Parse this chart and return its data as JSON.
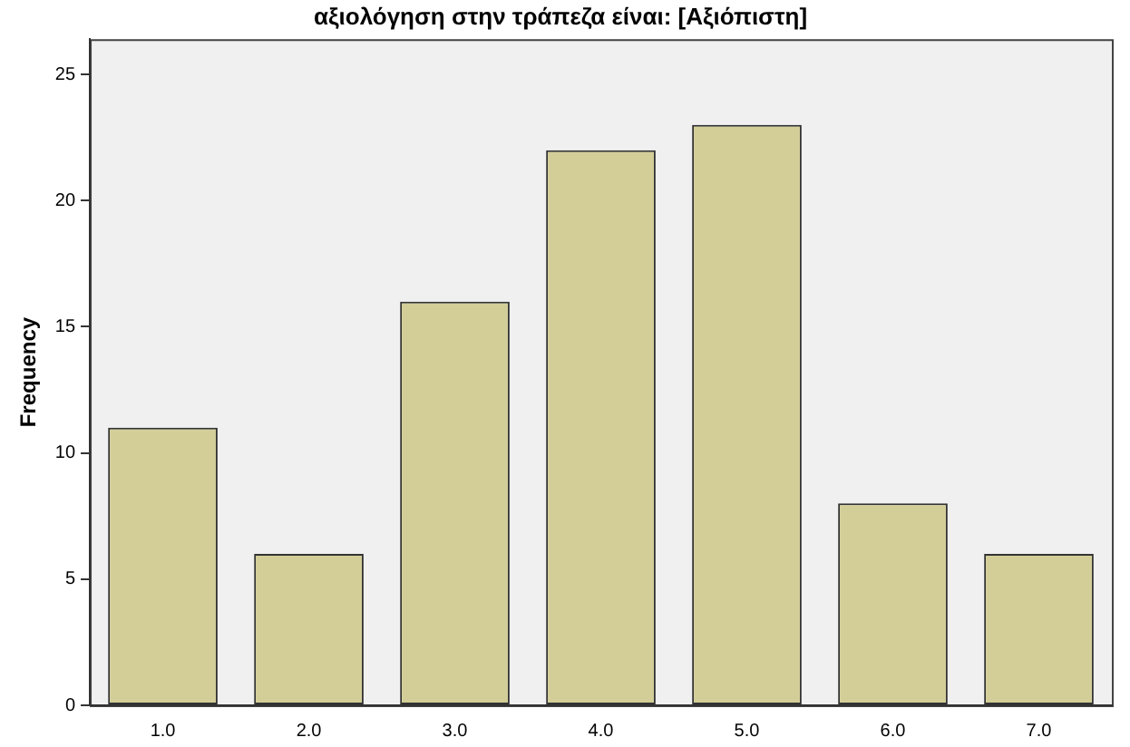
{
  "chart_data": {
    "type": "bar",
    "title": "αξιολόγηση στην τράπεζα είναι: [Αξιόπιστη]",
    "ylabel": "Frequency",
    "categories": [
      "1.0",
      "2.0",
      "3.0",
      "4.0",
      "5.0",
      "6.0",
      "7.0"
    ],
    "values": [
      11,
      6,
      16,
      22,
      23,
      8,
      6
    ],
    "color": "#d3ce97",
    "ylim": [
      0,
      26.4
    ],
    "yticks": [
      0,
      5,
      10,
      15,
      20,
      25
    ],
    "grid": false,
    "legend": false
  }
}
